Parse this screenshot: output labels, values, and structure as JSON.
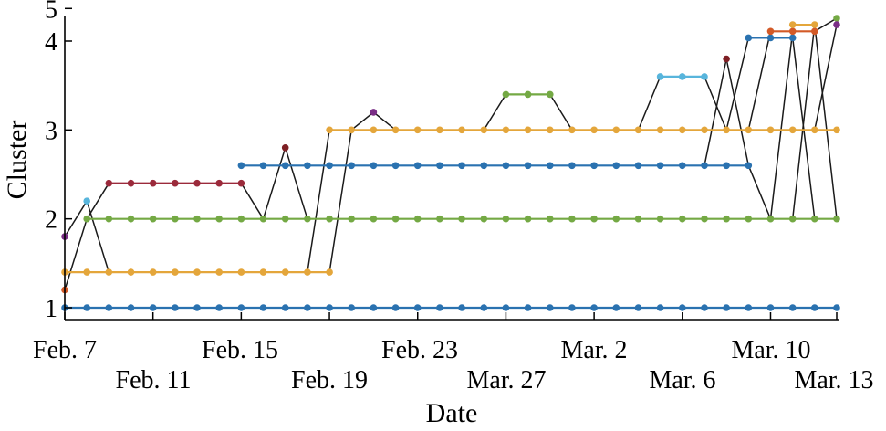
{
  "chart_data": {
    "type": "line",
    "title": "",
    "xlabel": "Date",
    "ylabel": "Cluster",
    "x_tick_labels": {
      "upper": [
        "Feb. 7",
        "Feb. 15",
        "Feb. 23",
        "Mar. 2",
        "Mar. 10"
      ],
      "lower": [
        "Feb. 11",
        "Feb. 19",
        "Mar. 27",
        "Mar. 6",
        "Mar. 13"
      ]
    },
    "y_ticks": [
      {
        "label": "1",
        "value": 1.0
      },
      {
        "label": "2",
        "value": 2.0
      },
      {
        "label": "3",
        "value": 3.0
      },
      {
        "label": "4",
        "value": 4.0
      },
      {
        "label": "5",
        "value": 5.0
      }
    ],
    "ylim": [
      0.9,
      4.8
    ],
    "xlim_days": [
      0,
      35
    ],
    "grid": false,
    "colors": {
      "blue": "#2a72b0",
      "orange": "#e4a63b",
      "green": "#74a944",
      "maroon": "#9b2a3b",
      "lightblue": "#58b5dc",
      "purple": "#7a2e86",
      "red": "#d35a27",
      "darkred": "#7e1f24",
      "connector": "#1a1a1a"
    },
    "series": [
      {
        "color": "blue",
        "points": [
          [
            0,
            1.0
          ],
          [
            1,
            1.0
          ],
          [
            2,
            1.0
          ],
          [
            3,
            1.0
          ],
          [
            4,
            1.0
          ],
          [
            5,
            1.0
          ],
          [
            6,
            1.0
          ],
          [
            7,
            1.0
          ],
          [
            8,
            1.0
          ],
          [
            9,
            1.0
          ],
          [
            10,
            1.0
          ],
          [
            11,
            1.0
          ],
          [
            12,
            1.0
          ],
          [
            13,
            1.0
          ],
          [
            14,
            1.0
          ],
          [
            15,
            1.0
          ],
          [
            16,
            1.0
          ],
          [
            17,
            1.0
          ],
          [
            18,
            1.0
          ],
          [
            19,
            1.0
          ],
          [
            20,
            1.0
          ],
          [
            21,
            1.0
          ],
          [
            22,
            1.0
          ],
          [
            23,
            1.0
          ],
          [
            24,
            1.0
          ],
          [
            25,
            1.0
          ],
          [
            26,
            1.0
          ],
          [
            27,
            1.0
          ],
          [
            28,
            1.0
          ],
          [
            29,
            1.0
          ],
          [
            30,
            1.0
          ],
          [
            31,
            1.0
          ],
          [
            32,
            1.0
          ],
          [
            33,
            1.0
          ],
          [
            34,
            1.0
          ],
          [
            35,
            1.0
          ]
        ]
      },
      {
        "color": "orange",
        "points": [
          [
            0,
            1.4
          ],
          [
            1,
            1.4
          ],
          [
            2,
            1.4
          ],
          [
            3,
            1.4
          ],
          [
            4,
            1.4
          ],
          [
            5,
            1.4
          ],
          [
            6,
            1.4
          ],
          [
            7,
            1.4
          ],
          [
            8,
            1.4
          ],
          [
            9,
            1.4
          ],
          [
            10,
            1.4
          ],
          [
            11,
            1.4
          ],
          [
            12,
            1.4
          ]
        ]
      },
      {
        "color": "green",
        "points": [
          [
            1,
            2.0
          ],
          [
            2,
            2.0
          ],
          [
            3,
            2.0
          ],
          [
            4,
            2.0
          ],
          [
            5,
            2.0
          ],
          [
            6,
            2.0
          ],
          [
            7,
            2.0
          ],
          [
            8,
            2.0
          ],
          [
            9,
            2.0
          ],
          [
            10,
            2.0
          ],
          [
            11,
            2.0
          ],
          [
            12,
            2.0
          ],
          [
            13,
            2.0
          ],
          [
            14,
            2.0
          ],
          [
            15,
            2.0
          ],
          [
            16,
            2.0
          ],
          [
            17,
            2.0
          ],
          [
            18,
            2.0
          ],
          [
            19,
            2.0
          ],
          [
            20,
            2.0
          ],
          [
            21,
            2.0
          ],
          [
            22,
            2.0
          ],
          [
            23,
            2.0
          ],
          [
            24,
            2.0
          ],
          [
            25,
            2.0
          ],
          [
            26,
            2.0
          ],
          [
            27,
            2.0
          ],
          [
            28,
            2.0
          ],
          [
            29,
            2.0
          ],
          [
            30,
            2.0
          ],
          [
            31,
            2.0
          ],
          [
            32,
            2.0
          ],
          [
            33,
            2.0
          ],
          [
            34,
            2.0
          ],
          [
            35,
            2.0
          ]
        ]
      },
      {
        "color": "maroon",
        "points": [
          [
            2,
            2.4
          ],
          [
            3,
            2.4
          ],
          [
            4,
            2.4
          ],
          [
            5,
            2.4
          ],
          [
            6,
            2.4
          ],
          [
            7,
            2.4
          ],
          [
            8,
            2.4
          ]
        ]
      },
      {
        "color": "blue",
        "points": [
          [
            8,
            2.6
          ],
          [
            9,
            2.6
          ],
          [
            10,
            2.6
          ],
          [
            11,
            2.6
          ],
          [
            12,
            2.6
          ],
          [
            13,
            2.6
          ],
          [
            14,
            2.6
          ],
          [
            15,
            2.6
          ],
          [
            16,
            2.6
          ],
          [
            17,
            2.6
          ],
          [
            18,
            2.6
          ],
          [
            19,
            2.6
          ],
          [
            20,
            2.6
          ],
          [
            21,
            2.6
          ],
          [
            22,
            2.6
          ],
          [
            23,
            2.6
          ],
          [
            24,
            2.6
          ],
          [
            25,
            2.6
          ],
          [
            26,
            2.6
          ],
          [
            27,
            2.6
          ],
          [
            28,
            2.6
          ],
          [
            29,
            2.6
          ],
          [
            30,
            2.6
          ],
          [
            31,
            2.6
          ]
        ]
      },
      {
        "color": "orange",
        "points": [
          [
            12,
            3.0
          ],
          [
            13,
            3.0
          ],
          [
            14,
            3.0
          ],
          [
            15,
            3.0
          ],
          [
            16,
            3.0
          ],
          [
            17,
            3.0
          ],
          [
            18,
            3.0
          ],
          [
            19,
            3.0
          ],
          [
            20,
            3.0
          ],
          [
            21,
            3.0
          ],
          [
            22,
            3.0
          ],
          [
            23,
            3.0
          ],
          [
            24,
            3.0
          ],
          [
            25,
            3.0
          ],
          [
            26,
            3.0
          ],
          [
            27,
            3.0
          ],
          [
            28,
            3.0
          ],
          [
            29,
            3.0
          ],
          [
            30,
            3.0
          ],
          [
            31,
            3.0
          ],
          [
            32,
            3.0
          ],
          [
            33,
            3.0
          ],
          [
            34,
            3.0
          ],
          [
            35,
            3.0
          ]
        ]
      },
      {
        "color": "green",
        "points": [
          [
            20,
            3.4
          ],
          [
            21,
            3.4
          ],
          [
            22,
            3.4
          ]
        ]
      },
      {
        "color": "lightblue",
        "points": [
          [
            27,
            3.6
          ],
          [
            28,
            3.6
          ],
          [
            29,
            3.6
          ]
        ]
      },
      {
        "color": "blue",
        "points": [
          [
            31,
            4.1
          ],
          [
            32,
            4.1
          ],
          [
            33,
            4.1
          ]
        ]
      },
      {
        "color": "red",
        "points": [
          [
            32,
            4.3
          ],
          [
            33,
            4.3
          ],
          [
            34,
            4.3
          ]
        ]
      },
      {
        "color": "orange",
        "points": [
          [
            33,
            4.5
          ],
          [
            34,
            4.5
          ]
        ]
      },
      {
        "color": "purple",
        "points": [
          [
            0,
            1.8
          ]
        ]
      },
      {
        "color": "red",
        "points": [
          [
            0,
            1.2
          ]
        ]
      },
      {
        "color": "lightblue",
        "points": [
          [
            1,
            2.2
          ]
        ]
      },
      {
        "color": "darkred",
        "points": [
          [
            10,
            2.8
          ]
        ]
      },
      {
        "color": "purple",
        "points": [
          [
            14,
            3.2
          ]
        ]
      },
      {
        "color": "darkred",
        "points": [
          [
            30,
            3.8
          ]
        ]
      },
      {
        "color": "green",
        "points": [
          [
            35,
            4.7
          ]
        ]
      },
      {
        "color": "purple",
        "points": [
          [
            35,
            4.5
          ]
        ]
      }
    ],
    "connectors": [
      [
        [
          0,
          1.8
        ],
        [
          1,
          2.2
        ],
        [
          2,
          1.4
        ]
      ],
      [
        [
          0,
          1.2
        ],
        [
          1,
          2.0
        ],
        [
          2,
          2.4
        ]
      ],
      [
        [
          8,
          2.4
        ],
        [
          9,
          2.0
        ],
        [
          10,
          2.8
        ],
        [
          11,
          2.0
        ]
      ],
      [
        [
          11,
          1.4
        ],
        [
          12,
          3.0
        ]
      ],
      [
        [
          12,
          1.4
        ],
        [
          13,
          3.0
        ],
        [
          14,
          3.2
        ],
        [
          15,
          3.0
        ]
      ],
      [
        [
          19,
          3.0
        ],
        [
          20,
          3.4
        ]
      ],
      [
        [
          22,
          3.4
        ],
        [
          23,
          3.0
        ]
      ],
      [
        [
          26,
          3.0
        ],
        [
          27,
          3.6
        ]
      ],
      [
        [
          29,
          3.6
        ],
        [
          30,
          3.0
        ],
        [
          31,
          4.1
        ]
      ],
      [
        [
          31,
          2.6
        ],
        [
          32,
          2.0
        ],
        [
          33,
          4.3
        ]
      ],
      [
        [
          29,
          2.6
        ],
        [
          30,
          3.8
        ],
        [
          31,
          2.6
        ]
      ],
      [
        [
          31,
          3.0
        ],
        [
          32,
          4.3
        ]
      ],
      [
        [
          33,
          4.1
        ],
        [
          34,
          2.0
        ]
      ],
      [
        [
          33,
          2.0
        ],
        [
          34,
          4.5
        ],
        [
          35,
          2.0
        ]
      ],
      [
        [
          34,
          4.3
        ],
        [
          35,
          4.7
        ]
      ],
      [
        [
          34,
          3.0
        ],
        [
          35,
          4.5
        ]
      ]
    ]
  }
}
